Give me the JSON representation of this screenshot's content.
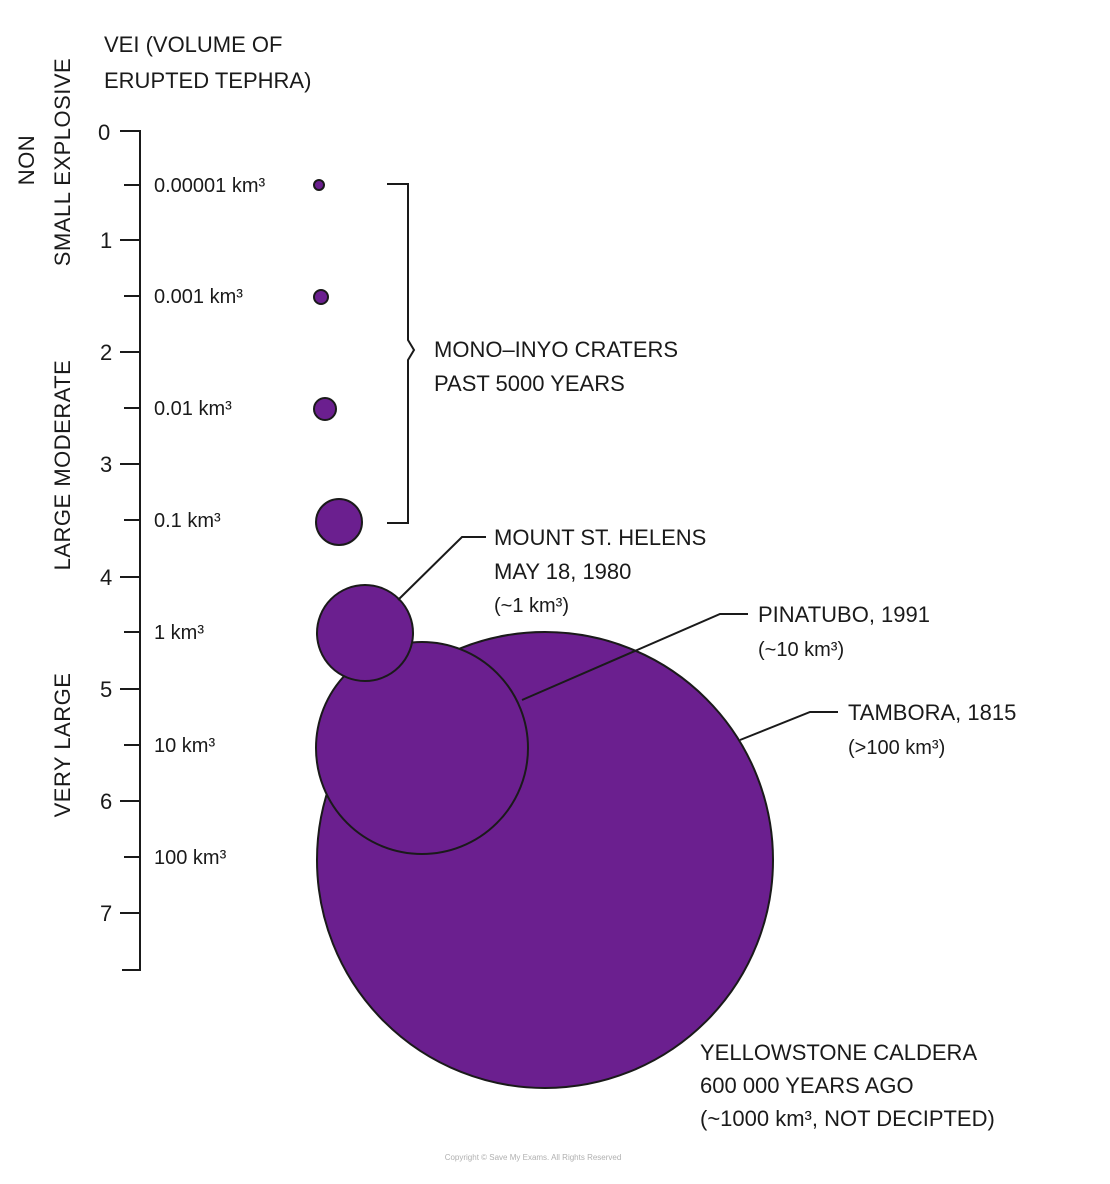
{
  "axis_title": [
    "VEI (VOLUME OF",
    "ERUPTED TEPHRA)"
  ],
  "categories": [
    {
      "lines": [
        "NON"
      ]
    },
    {
      "lines": [
        "SMALL EXPLOSIVE"
      ]
    },
    {
      "lines": [
        "LARGE MODERATE"
      ]
    },
    {
      "lines": [
        "VERY LARGE"
      ]
    }
  ],
  "vei_ticks": [
    "0",
    "1",
    "2",
    "3",
    "4",
    "5",
    "6",
    "7"
  ],
  "volume_ticks": [
    "0.00001 km³",
    "0.001 km³",
    "0.01 km³",
    "0.1 km³",
    "1 km³",
    "10 km³",
    "100 km³"
  ],
  "bracket_label": [
    "MONO–INYO CRATERS",
    "PAST 5000 YEARS"
  ],
  "eruptions": [
    {
      "lines": [
        "MOUNT ST. HELENS",
        "MAY 18, 1980",
        "(~1 km³)"
      ]
    },
    {
      "lines": [
        "PINATUBO, 1991",
        "(~10 km³)"
      ]
    },
    {
      "lines": [
        "TAMBORA, 1815",
        "(>100 km³)"
      ]
    },
    {
      "lines": [
        "YELLOWSTONE CALDERA",
        "600 000 YEARS AGO",
        "(~1000 km³, NOT DECIPTED)"
      ]
    }
  ],
  "copyright": "Copyright © Save My Exams. All Rights Reserved",
  "colors": {
    "bubble": "#6b1f8f",
    "ink": "#1a1a1a"
  }
}
